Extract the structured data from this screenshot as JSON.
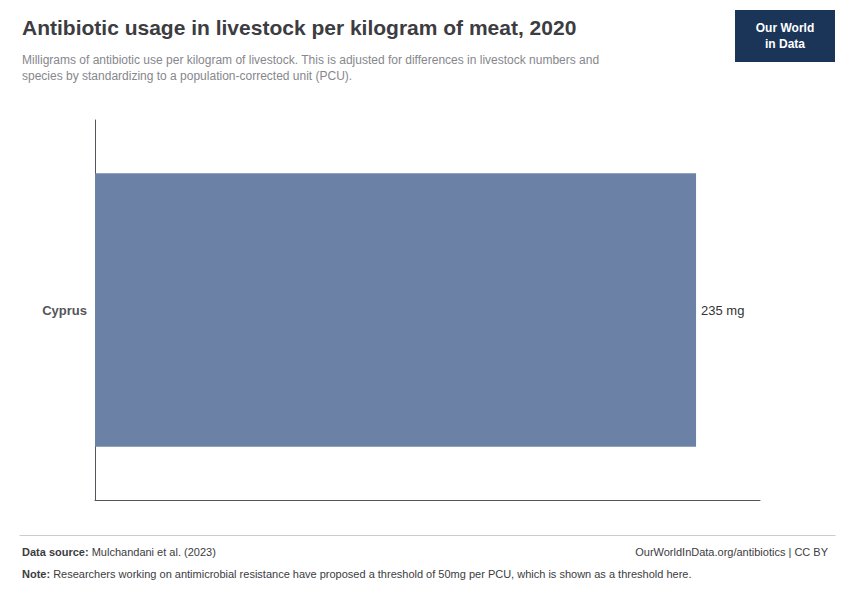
{
  "chart_data": {
    "type": "bar",
    "orientation": "horizontal",
    "title": "Antibiotic usage in livestock per kilogram of meat, 2020",
    "subtitle": "Milligrams of antibiotic use per kilogram of livestock. This is adjusted for differences in livestock numbers and\nspecies by standardizing to a population-corrected unit (PCU).",
    "categories": [
      "Cyprus"
    ],
    "values": [
      235
    ],
    "value_labels": [
      "235 mg"
    ],
    "data_labels": true,
    "color": "#6b82a6",
    "xlim": [
      0,
      260
    ],
    "tick_labels": "y",
    "grid": false,
    "annotations": [
      {
        "text": "Data source: Mulchandani et al. (2023)"
      },
      {
        "text": "OurWorldInData.org/antibiotics | CC BY"
      },
      {
        "text": "Note: Researchers working on antimicrobial resistance have proposed a threshold of 50mg per PCU, which is shown as a threshold here."
      },
      {
        "text": "Our World\nin Data",
        "color": "#1a3558"
      }
    ]
  }
}
